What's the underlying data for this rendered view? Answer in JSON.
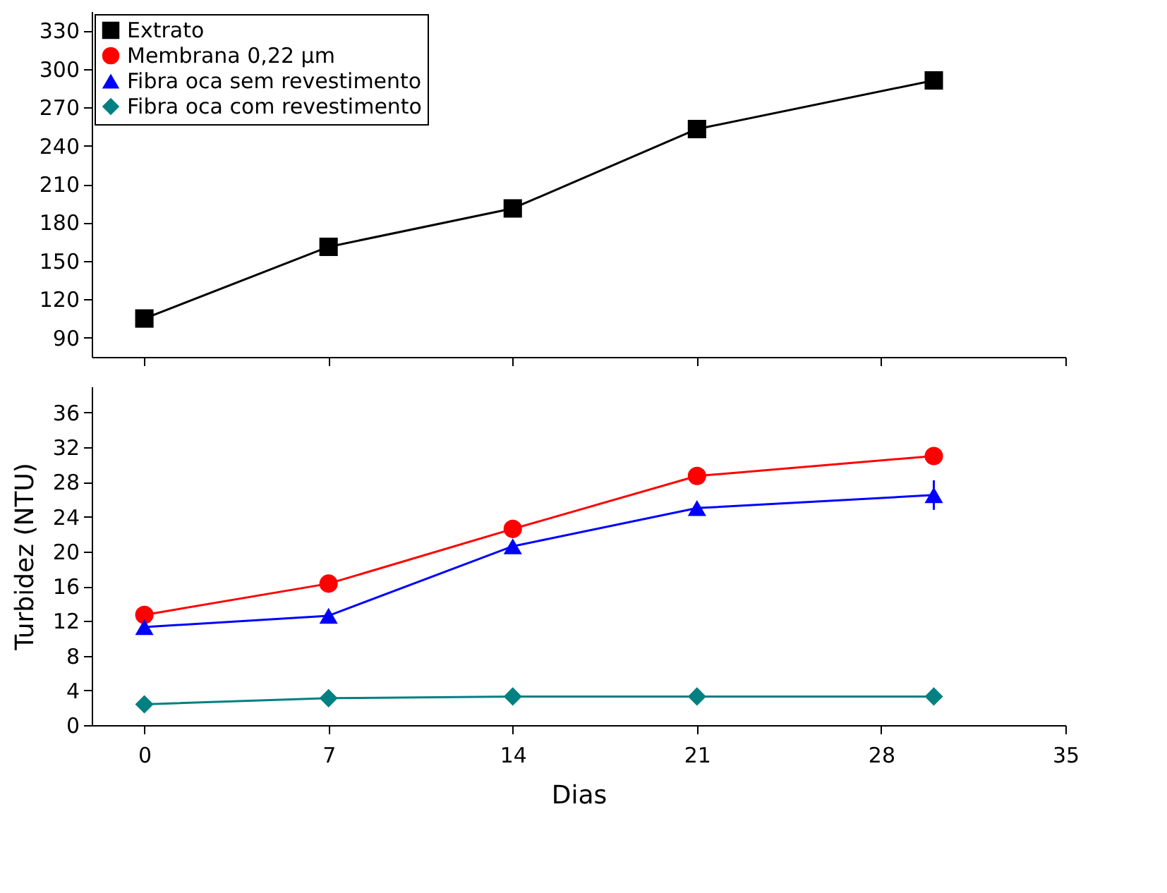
{
  "chart_data": [
    {
      "type": "line",
      "xlim": [
        -2,
        35
      ],
      "xticks": [
        0,
        7,
        14,
        21,
        28,
        35
      ],
      "ylim": [
        75,
        345
      ],
      "yticks": [
        90,
        120,
        150,
        180,
        210,
        240,
        270,
        300,
        330
      ],
      "tick_labels": "y",
      "legend": "top left",
      "grid": false,
      "series": [
        {
          "name": "Extrato",
          "color": "#000000",
          "marker": "square",
          "x": [
            0,
            7,
            14,
            21,
            30
          ],
          "values": [
            105,
            161,
            191,
            253,
            291
          ]
        }
      ]
    },
    {
      "type": "line",
      "xlabel": "Dias",
      "ylabel": "Turbidez (NTU)",
      "xlim": [
        -2,
        35
      ],
      "xticks": [
        0,
        7,
        14,
        21,
        28,
        35
      ],
      "ylim": [
        0,
        39
      ],
      "yticks": [
        0,
        4,
        8,
        12,
        16,
        20,
        24,
        28,
        32,
        36
      ],
      "grid": false,
      "legend": "top left",
      "series": [
        {
          "name": "Membrana 0,22 µm",
          "color": "#ff0000",
          "marker": "circle",
          "x": [
            0,
            7,
            14,
            21,
            30
          ],
          "values": [
            12.7,
            16.3,
            22.6,
            28.7,
            31.0
          ]
        },
        {
          "name": "Fibra oca sem revestimento",
          "color": "#0000ff",
          "marker": "triangle",
          "x": [
            0,
            7,
            14,
            21,
            30
          ],
          "values": [
            11.3,
            12.6,
            20.6,
            25.0,
            26.5
          ],
          "errors": [
            null,
            null,
            null,
            null,
            1.7
          ]
        },
        {
          "name": "Fibra oca com revestimento",
          "color": "#008080",
          "marker": "diamond",
          "x": [
            0,
            7,
            14,
            21,
            30
          ],
          "values": [
            2.4,
            3.1,
            3.3,
            3.3,
            3.3
          ]
        }
      ]
    }
  ]
}
